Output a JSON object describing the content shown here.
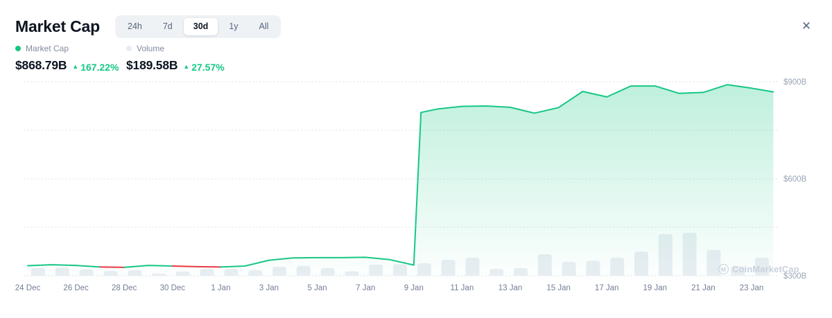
{
  "header": {
    "title": "Market Cap",
    "tabs": [
      {
        "label": "24h",
        "selected": false
      },
      {
        "label": "7d",
        "selected": false
      },
      {
        "label": "30d",
        "selected": true
      },
      {
        "label": "1y",
        "selected": false
      },
      {
        "label": "All",
        "selected": false
      }
    ],
    "close_icon": "✕"
  },
  "stats": {
    "market_cap": {
      "legend_label": "Market Cap",
      "value": "$868.79B",
      "change_arrow": "▲",
      "change": "167.22%",
      "direction": "up"
    },
    "volume": {
      "legend_label": "Volume",
      "value": "$189.58B",
      "change_arrow": "▲",
      "change": "27.57%",
      "direction": "up"
    }
  },
  "watermark": {
    "logo_letter": "M",
    "text": "CoinMarketCap"
  },
  "colors": {
    "line_green": "#16c784",
    "line_red": "#ea3943",
    "area_top": "rgba(22,199,132,0.28)",
    "area_bottom": "rgba(22,199,132,0)",
    "volume_bar": "#eaeef3",
    "gridline": "#d5dbe5",
    "x_label": "#737e93",
    "y_label": "#9aa4b6",
    "title_text": "#0d1421",
    "muted_text": "#808a9d"
  },
  "chart_data": {
    "type": "line",
    "title": "Total crypto market cap, 30 days",
    "unit": "USD billions",
    "ylim": [
      300,
      920
    ],
    "gridline_values": [
      900,
      750,
      600,
      450,
      300
    ],
    "y_ticks": [
      {
        "label": "$900B",
        "value": 900
      },
      {
        "label": "$600B",
        "value": 600
      },
      {
        "label": "$300B",
        "value": 300
      }
    ],
    "x_tick_labels": [
      "24 Dec",
      "26 Dec",
      "28 Dec",
      "30 Dec",
      "1 Jan",
      "3 Jan",
      "5 Jan",
      "7 Jan",
      "9 Jan",
      "11 Jan",
      "13 Jan",
      "15 Jan",
      "17 Jan",
      "19 Jan",
      "21 Jan",
      "23 Jan"
    ],
    "x_tick_day_step": 2,
    "series": [
      {
        "name": "Market Cap",
        "points_day_value": [
          [
            0,
            331
          ],
          [
            1,
            334
          ],
          [
            2,
            332
          ],
          [
            3,
            327
          ],
          [
            4,
            326
          ],
          [
            5,
            332
          ],
          [
            6,
            330
          ],
          [
            7,
            328
          ],
          [
            8,
            327
          ],
          [
            9,
            330
          ],
          [
            10,
            348
          ],
          [
            11,
            355
          ],
          [
            12,
            356
          ],
          [
            13,
            356
          ],
          [
            14,
            357
          ],
          [
            15,
            350
          ],
          [
            16,
            333
          ],
          [
            16.3,
            805
          ],
          [
            17,
            816
          ],
          [
            18,
            824
          ],
          [
            19,
            825
          ],
          [
            20,
            821
          ],
          [
            21,
            803
          ],
          [
            22,
            820
          ],
          [
            23,
            870
          ],
          [
            24,
            853
          ],
          [
            25,
            887
          ],
          [
            26,
            887
          ],
          [
            27,
            864
          ],
          [
            28,
            867
          ],
          [
            29,
            891
          ],
          [
            30,
            880
          ],
          [
            30.9,
            868.79
          ]
        ],
        "red_segments_day_ranges": [
          [
            3,
            4
          ],
          [
            6,
            8
          ]
        ]
      },
      {
        "name": "Volume (relative bar height, 0-1)",
        "values": [
          0.18,
          0.19,
          0.15,
          0.11,
          0.13,
          0.05,
          0.1,
          0.16,
          0.16,
          0.13,
          0.21,
          0.23,
          0.18,
          0.1,
          0.26,
          0.27,
          0.29,
          0.37,
          0.42,
          0.16,
          0.18,
          0.5,
          0.32,
          0.35,
          0.42,
          0.56,
          0.97,
          1.0,
          0.6,
          0.22,
          0.42
        ]
      }
    ],
    "legend_position": "top-left",
    "grid": "dotted-horizontal"
  }
}
